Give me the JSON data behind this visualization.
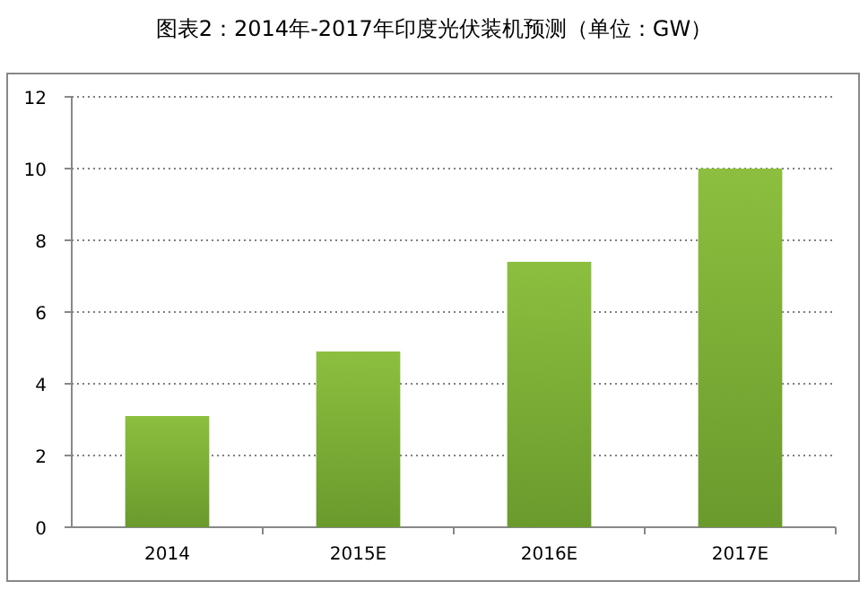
{
  "chart_data": {
    "type": "bar",
    "title": "图表2：2014年-2017年印度光伏装机预测（单位：GW）",
    "categories": [
      "2014",
      "2015E",
      "2016E",
      "2017E"
    ],
    "values": [
      3.1,
      4.9,
      7.4,
      10
    ],
    "color": "#8cbf3f",
    "ylim": [
      0,
      12
    ],
    "yticks": [
      0,
      2,
      4,
      6,
      8,
      10,
      12
    ],
    "grid": "y"
  }
}
